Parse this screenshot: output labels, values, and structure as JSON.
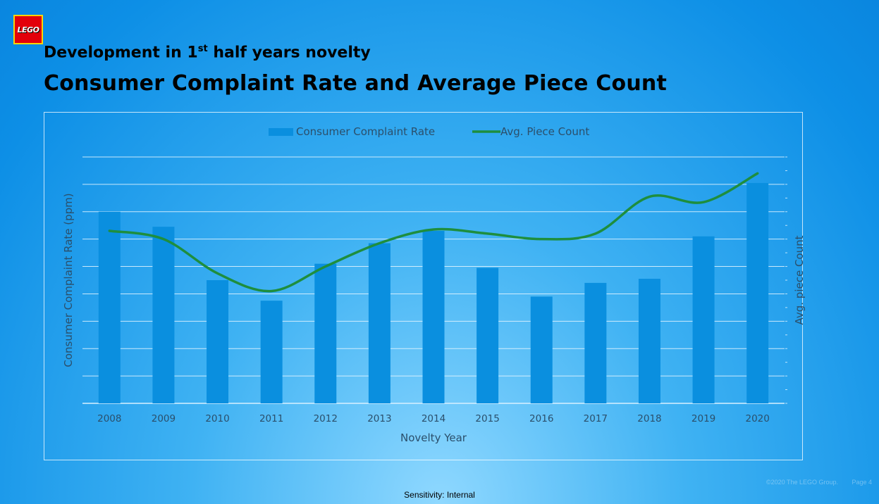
{
  "logo": {
    "text": "LEGO"
  },
  "header": {
    "subtitle_pre": "Development in 1",
    "subtitle_sup": "st",
    "subtitle_post": " half years novelty",
    "title": "Consumer Complaint Rate and Average Piece Count"
  },
  "footer": {
    "sensitivity": "Sensitivity: Internal",
    "copyright": "©2020 The LEGO Group.",
    "page": "Page 4"
  },
  "colors": {
    "bar": "#0a8fdf",
    "line": "#1e8e3e",
    "grid": "#e6f6ff",
    "text": "#2b4f6b"
  },
  "chart_data": {
    "type": "bar",
    "categories": [
      "2008",
      "2009",
      "2010",
      "2011",
      "2012",
      "2013",
      "2014",
      "2015",
      "2016",
      "2017",
      "2018",
      "2019",
      "2020"
    ],
    "xlabel": "Novelty Year",
    "ylabel": "Consumer Complaint Rate (ppm)",
    "y2label": "Avg. piece Count",
    "ylim": [
      0,
      9
    ],
    "y2lim": [
      0,
      9
    ],
    "grid": true,
    "legend_position": "top-center",
    "series": [
      {
        "name": "Consumer Complaint Rate",
        "type": "bar",
        "axis": "left",
        "values": [
          7.0,
          6.45,
          4.5,
          3.75,
          5.1,
          5.85,
          6.3,
          4.95,
          3.9,
          4.4,
          4.55,
          6.1,
          8.05
        ]
      },
      {
        "name": "Avg. Piece Count",
        "type": "line",
        "axis": "right",
        "values": [
          6.3,
          6.0,
          4.75,
          4.1,
          5.0,
          5.85,
          6.35,
          6.2,
          6.0,
          6.2,
          7.55,
          7.35,
          8.4
        ]
      }
    ]
  }
}
